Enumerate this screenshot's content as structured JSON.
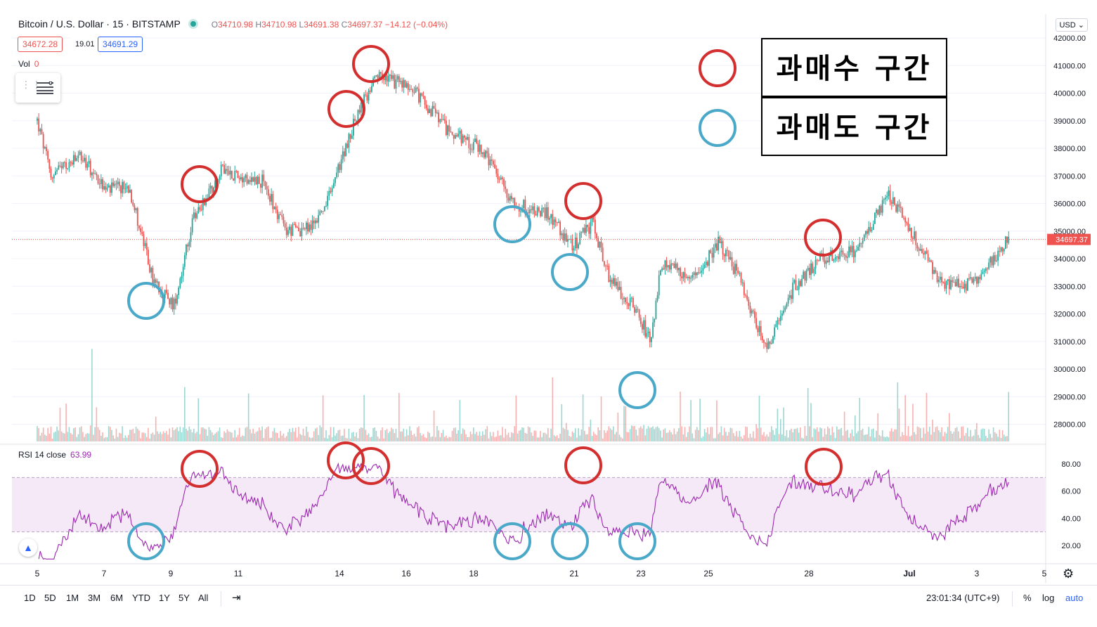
{
  "header": {
    "symbol": "Bitcoin / U.S. Dollar · 15 · BITSTAMP",
    "open_key": "O",
    "open": "34710.98",
    "high_key": "H",
    "high": "34710.98",
    "low_key": "L",
    "low": "34691.38",
    "close_key": "C",
    "close": "34697.37",
    "change": "−14.12 (−0.04%)"
  },
  "chips": {
    "sell": "34672.28",
    "spread": "19.01",
    "buy": "34691.29"
  },
  "volume_label": {
    "name": "Vol",
    "value": "0"
  },
  "currency_button": "USD",
  "price_axis": {
    "ticks": [
      "42000.00",
      "41000.00",
      "40000.00",
      "39000.00",
      "38000.00",
      "37000.00",
      "36000.00",
      "35000.00",
      "34000.00",
      "33000.00",
      "32000.00",
      "31000.00",
      "30000.00",
      "29000.00",
      "28000.00"
    ],
    "last_price": "34697.37"
  },
  "rsi_label": {
    "name": "RSI 14 close",
    "value": "63.99"
  },
  "rsi_axis": {
    "ticks": [
      "80.00",
      "60.00",
      "40.00",
      "20.00"
    ]
  },
  "time_axis": {
    "ticks": [
      "5",
      "7",
      "9",
      "11",
      "14",
      "16",
      "18",
      "21",
      "23",
      "25",
      "28",
      "Jul",
      "3",
      "5"
    ]
  },
  "legend": {
    "overbought": "과매수 구간",
    "oversold": "과매도 구간",
    "overbought_color": "#d32f2f",
    "oversold_color": "#4aa8c8"
  },
  "bottom_bar": {
    "ranges": [
      "1D",
      "5D",
      "1M",
      "3M",
      "6M",
      "YTD",
      "1Y",
      "5Y",
      "All"
    ],
    "clock": "23:01:34 (UTC+9)",
    "percent": "%",
    "log": "log",
    "auto": "auto"
  },
  "chart_data": {
    "type": "candlestick",
    "x_ticks": [
      "5",
      "7",
      "9",
      "11",
      "14",
      "16",
      "18",
      "21",
      "23",
      "25",
      "28",
      "Jul",
      "3",
      "5"
    ],
    "price_anchors": [
      {
        "t": "5",
        "price": 39000
      },
      {
        "t": "5.4",
        "price": 37000
      },
      {
        "t": "6.3",
        "price": 37700
      },
      {
        "t": "7",
        "price": 36500
      },
      {
        "t": "7.7",
        "price": 36600
      },
      {
        "t": "8.4",
        "price": 33200
      },
      {
        "t": "9",
        "price": 32300
      },
      {
        "t": "9.6",
        "price": 35500
      },
      {
        "t": "10.4",
        "price": 37200
      },
      {
        "t": "11.6",
        "price": 36800
      },
      {
        "t": "12.3",
        "price": 35000
      },
      {
        "t": "13",
        "price": 35100
      },
      {
        "t": "13.5",
        "price": 36000
      },
      {
        "t": "14.4",
        "price": 39300
      },
      {
        "t": "15",
        "price": 40600
      },
      {
        "t": "16",
        "price": 40200
      },
      {
        "t": "17",
        "price": 38700
      },
      {
        "t": "18",
        "price": 38000
      },
      {
        "t": "19",
        "price": 36000
      },
      {
        "t": "20",
        "price": 35600
      },
      {
        "t": "20.7",
        "price": 34400
      },
      {
        "t": "21.3",
        "price": 35300
      },
      {
        "t": "21.8",
        "price": 33200
      },
      {
        "t": "22.5",
        "price": 32300
      },
      {
        "t": "23",
        "price": 31000
      },
      {
        "t": "23.3",
        "price": 33800
      },
      {
        "t": "24.3",
        "price": 33300
      },
      {
        "t": "25",
        "price": 34600
      },
      {
        "t": "25.6",
        "price": 33300
      },
      {
        "t": "26.4",
        "price": 30700
      },
      {
        "t": "27.2",
        "price": 33000
      },
      {
        "t": "28",
        "price": 34000
      },
      {
        "t": "29",
        "price": 34300
      },
      {
        "t": "30",
        "price": 36300
      },
      {
        "t": "Jul",
        "price": 34200
      },
      {
        "t": "Jul 1.6",
        "price": 33000
      },
      {
        "t": "Jul 2.5",
        "price": 33100
      },
      {
        "t": "Jul 3.5",
        "price": 34697.37
      }
    ],
    "rsi": {
      "period": 14,
      "overbought_level": 70,
      "oversold_level": 30,
      "last_value": 63.99,
      "ylim": [
        10,
        90
      ]
    },
    "ylim": [
      27500,
      42500
    ],
    "highlights": [
      {
        "kind": "overbought",
        "t": "10.0"
      },
      {
        "kind": "overbought",
        "t": "14.2"
      },
      {
        "kind": "overbought",
        "t": "15.0"
      },
      {
        "kind": "overbought",
        "t": "21.2"
      },
      {
        "kind": "overbought",
        "t": "28.5"
      },
      {
        "kind": "oversold",
        "t": "8.3"
      },
      {
        "kind": "oversold",
        "t": "19.5"
      },
      {
        "kind": "oversold",
        "t": "20.8"
      },
      {
        "kind": "oversold",
        "t": "22.9"
      }
    ]
  }
}
